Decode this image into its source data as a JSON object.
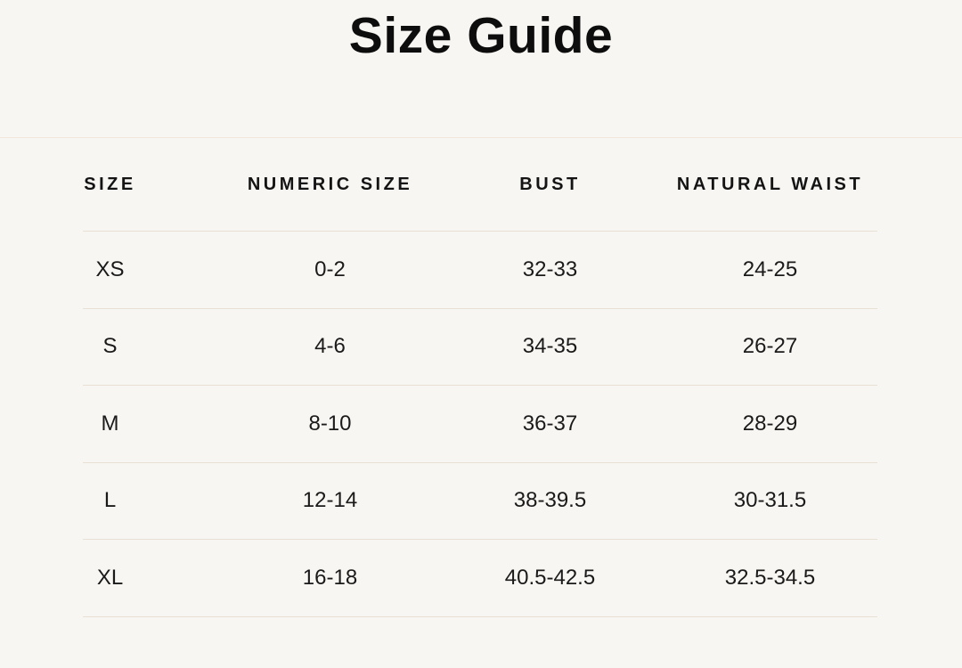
{
  "page": {
    "title": "Size Guide"
  },
  "size_table": {
    "columns": [
      {
        "label": "SIZE"
      },
      {
        "label": "NUMERIC SIZE"
      },
      {
        "label": "BUST"
      },
      {
        "label": "NATURAL WAIST"
      }
    ],
    "rows": [
      {
        "size": "XS",
        "numeric_size": "0-2",
        "bust": "32-33",
        "natural_waist": "24-25"
      },
      {
        "size": "S",
        "numeric_size": "4-6",
        "bust": "34-35",
        "natural_waist": "26-27"
      },
      {
        "size": "M",
        "numeric_size": "8-10",
        "bust": "36-37",
        "natural_waist": "28-29"
      },
      {
        "size": "L",
        "numeric_size": "12-14",
        "bust": "38-39.5",
        "natural_waist": "30-31.5"
      },
      {
        "size": "XL",
        "numeric_size": "16-18",
        "bust": "40.5-42.5",
        "natural_waist": "32.5-34.5"
      }
    ]
  },
  "colors": {
    "background": "#f8f6f2",
    "text": "#121212",
    "top_divider": "#f0e6dc",
    "row_divider": "#e9e0d4"
  }
}
